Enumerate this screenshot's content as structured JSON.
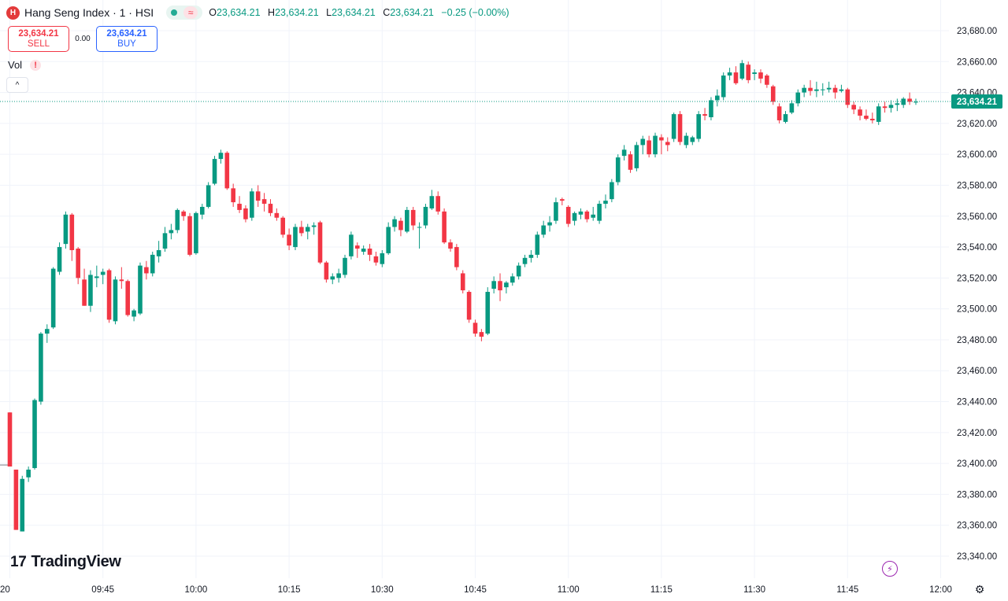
{
  "legend": {
    "logo": "H",
    "symbol": "Hang Seng Index · 1 · HSI",
    "open_key": "O",
    "open": "23,634.21",
    "high_key": "H",
    "high": "23,634.21",
    "low_key": "L",
    "low": "23,634.21",
    "close_key": "C",
    "close": "23,634.21",
    "change": "−0.25 (−0.00%)",
    "delay_glyph": "≈"
  },
  "trade": {
    "sell_price": "23,634.21",
    "sell_label": "SELL",
    "spread": "0.00",
    "buy_price": "23,634.21",
    "buy_label": "BUY"
  },
  "volume": {
    "label": "Vol",
    "warning": "!"
  },
  "collapse_glyph": "^",
  "brand": {
    "mark": "17",
    "name": "TradingView"
  },
  "colors": {
    "up": "#089981",
    "down": "#f23645",
    "last_price_bg": "#089981",
    "grid": "#f0f3fa"
  },
  "icons": [
    "chart-properties-icon",
    "lightning-icon",
    "gear-icon"
  ],
  "chart_data": {
    "type": "candlestick",
    "symbol": "HSI",
    "interval": "1 minute",
    "y_axis": {
      "ylim": [
        23330,
        23692
      ],
      "ticks": [
        "23,340.00",
        "23,360.00",
        "23,380.00",
        "23,400.00",
        "23,420.00",
        "23,440.00",
        "23,460.00",
        "23,480.00",
        "23,500.00",
        "23,520.00",
        "23,540.00",
        "23,560.00",
        "23,580.00",
        "23,600.00",
        "23,620.00",
        "23,640.00",
        "23,660.00",
        "23,680.00"
      ],
      "tick_values": [
        23340,
        23360,
        23380,
        23400,
        23420,
        23440,
        23460,
        23480,
        23500,
        23520,
        23540,
        23560,
        23580,
        23600,
        23620,
        23640,
        23660,
        23680
      ]
    },
    "x_axis": {
      "labels": [
        "20",
        "09:45",
        "10:00",
        "10:15",
        "10:30",
        "10:45",
        "11:00",
        "11:15",
        "11:30",
        "11:45",
        "12:00"
      ],
      "label_times": [
        "09:30",
        "09:45",
        "10:00",
        "10:15",
        "10:30",
        "10:45",
        "11:00",
        "11:15",
        "11:30",
        "11:45",
        "12:00"
      ]
    },
    "grid": true,
    "last_price": 23634.21,
    "last_price_label": "23,634.21",
    "reference_price": 23399,
    "candles": [
      {
        "t": "09:30",
        "o": 23433,
        "h": 23433,
        "l": 23398,
        "c": 23398
      },
      {
        "t": "09:31",
        "o": 23396,
        "h": 23396,
        "l": 23357,
        "c": 23357
      },
      {
        "t": "09:32",
        "o": 23356,
        "h": 23392,
        "l": 23356,
        "c": 23390
      },
      {
        "t": "09:33",
        "o": 23391,
        "h": 23398,
        "l": 23388,
        "c": 23396
      },
      {
        "t": "09:34",
        "o": 23397,
        "h": 23442,
        "l": 23396,
        "c": 23441
      },
      {
        "t": "09:35",
        "o": 23440,
        "h": 23485,
        "l": 23438,
        "c": 23484
      },
      {
        "t": "09:36",
        "o": 23484,
        "h": 23490,
        "l": 23478,
        "c": 23487
      },
      {
        "t": "09:37",
        "o": 23488,
        "h": 23527,
        "l": 23487,
        "c": 23526
      },
      {
        "t": "09:38",
        "o": 23524,
        "h": 23543,
        "l": 23522,
        "c": 23540
      },
      {
        "t": "09:39",
        "o": 23542,
        "h": 23563,
        "l": 23539,
        "c": 23561
      },
      {
        "t": "09:40",
        "o": 23561,
        "h": 23562,
        "l": 23531,
        "c": 23538
      },
      {
        "t": "09:41",
        "o": 23539,
        "h": 23540,
        "l": 23516,
        "c": 23520
      },
      {
        "t": "09:42",
        "o": 23519,
        "h": 23526,
        "l": 23502,
        "c": 23502
      },
      {
        "t": "09:43",
        "o": 23502,
        "h": 23525,
        "l": 23498,
        "c": 23522
      },
      {
        "t": "09:44",
        "o": 23520,
        "h": 23528,
        "l": 23514,
        "c": 23521
      },
      {
        "t": "09:45",
        "o": 23522,
        "h": 23526,
        "l": 23516,
        "c": 23524
      },
      {
        "t": "09:46",
        "o": 23525,
        "h": 23526,
        "l": 23491,
        "c": 23493
      },
      {
        "t": "09:47",
        "o": 23492,
        "h": 23521,
        "l": 23490,
        "c": 23519
      },
      {
        "t": "09:48",
        "o": 23519,
        "h": 23527,
        "l": 23513,
        "c": 23518
      },
      {
        "t": "09:49",
        "o": 23518,
        "h": 23519,
        "l": 23495,
        "c": 23496
      },
      {
        "t": "09:50",
        "o": 23495,
        "h": 23500,
        "l": 23492,
        "c": 23499
      },
      {
        "t": "09:51",
        "o": 23497,
        "h": 23530,
        "l": 23496,
        "c": 23528
      },
      {
        "t": "09:52",
        "o": 23527,
        "h": 23531,
        "l": 23519,
        "c": 23523
      },
      {
        "t": "09:53",
        "o": 23523,
        "h": 23537,
        "l": 23521,
        "c": 23535
      },
      {
        "t": "09:54",
        "o": 23534,
        "h": 23544,
        "l": 23530,
        "c": 23538
      },
      {
        "t": "09:55",
        "o": 23539,
        "h": 23553,
        "l": 23537,
        "c": 23549
      },
      {
        "t": "09:56",
        "o": 23549,
        "h": 23555,
        "l": 23545,
        "c": 23551
      },
      {
        "t": "09:57",
        "o": 23551,
        "h": 23565,
        "l": 23549,
        "c": 23564
      },
      {
        "t": "09:58",
        "o": 23563,
        "h": 23564,
        "l": 23557,
        "c": 23560
      },
      {
        "t": "09:59",
        "o": 23560,
        "h": 23562,
        "l": 23534,
        "c": 23535
      },
      {
        "t": "10:00",
        "o": 23536,
        "h": 23563,
        "l": 23535,
        "c": 23562
      },
      {
        "t": "10:01",
        "o": 23561,
        "h": 23568,
        "l": 23558,
        "c": 23566
      },
      {
        "t": "10:02",
        "o": 23566,
        "h": 23582,
        "l": 23565,
        "c": 23580
      },
      {
        "t": "10:03",
        "o": 23581,
        "h": 23599,
        "l": 23580,
        "c": 23597
      },
      {
        "t": "10:04",
        "o": 23597,
        "h": 23603,
        "l": 23594,
        "c": 23601
      },
      {
        "t": "10:05",
        "o": 23601,
        "h": 23602,
        "l": 23577,
        "c": 23578
      },
      {
        "t": "10:06",
        "o": 23578,
        "h": 23581,
        "l": 23566,
        "c": 23569
      },
      {
        "t": "10:07",
        "o": 23568,
        "h": 23573,
        "l": 23562,
        "c": 23564
      },
      {
        "t": "10:08",
        "o": 23565,
        "h": 23567,
        "l": 23556,
        "c": 23558
      },
      {
        "t": "10:09",
        "o": 23559,
        "h": 23578,
        "l": 23557,
        "c": 23576
      },
      {
        "t": "10:10",
        "o": 23576,
        "h": 23580,
        "l": 23566,
        "c": 23570
      },
      {
        "t": "10:11",
        "o": 23571,
        "h": 23575,
        "l": 23563,
        "c": 23568
      },
      {
        "t": "10:12",
        "o": 23568,
        "h": 23571,
        "l": 23560,
        "c": 23562
      },
      {
        "t": "10:13",
        "o": 23562,
        "h": 23565,
        "l": 23557,
        "c": 23559
      },
      {
        "t": "10:14",
        "o": 23559,
        "h": 23560,
        "l": 23546,
        "c": 23548
      },
      {
        "t": "10:15",
        "o": 23548,
        "h": 23552,
        "l": 23538,
        "c": 23541
      },
      {
        "t": "10:16",
        "o": 23540,
        "h": 23555,
        "l": 23538,
        "c": 23553
      },
      {
        "t": "10:17",
        "o": 23553,
        "h": 23557,
        "l": 23547,
        "c": 23549
      },
      {
        "t": "10:18",
        "o": 23550,
        "h": 23555,
        "l": 23545,
        "c": 23553
      },
      {
        "t": "10:19",
        "o": 23553,
        "h": 23556,
        "l": 23548,
        "c": 23554
      },
      {
        "t": "10:20",
        "o": 23556,
        "h": 23557,
        "l": 23529,
        "c": 23530
      },
      {
        "t": "10:21",
        "o": 23530,
        "h": 23531,
        "l": 23517,
        "c": 23519
      },
      {
        "t": "10:22",
        "o": 23519,
        "h": 23523,
        "l": 23516,
        "c": 23521
      },
      {
        "t": "10:23",
        "o": 23520,
        "h": 23526,
        "l": 23517,
        "c": 23523
      },
      {
        "t": "10:24",
        "o": 23522,
        "h": 23535,
        "l": 23520,
        "c": 23533
      },
      {
        "t": "10:25",
        "o": 23534,
        "h": 23550,
        "l": 23532,
        "c": 23548
      },
      {
        "t": "10:26",
        "o": 23541,
        "h": 23543,
        "l": 23533,
        "c": 23539
      },
      {
        "t": "10:27",
        "o": 23537,
        "h": 23541,
        "l": 23535,
        "c": 23539
      },
      {
        "t": "10:28",
        "o": 23539,
        "h": 23542,
        "l": 23531,
        "c": 23535
      },
      {
        "t": "10:29",
        "o": 23534,
        "h": 23537,
        "l": 23528,
        "c": 23530
      },
      {
        "t": "10:30",
        "o": 23529,
        "h": 23538,
        "l": 23527,
        "c": 23536
      },
      {
        "t": "10:31",
        "o": 23536,
        "h": 23556,
        "l": 23535,
        "c": 23553
      },
      {
        "t": "10:32",
        "o": 23553,
        "h": 23560,
        "l": 23550,
        "c": 23558
      },
      {
        "t": "10:33",
        "o": 23557,
        "h": 23559,
        "l": 23547,
        "c": 23551
      },
      {
        "t": "10:34",
        "o": 23550,
        "h": 23566,
        "l": 23549,
        "c": 23564
      },
      {
        "t": "10:35",
        "o": 23564,
        "h": 23566,
        "l": 23551,
        "c": 23554
      },
      {
        "t": "10:36",
        "o": 23553,
        "h": 23556,
        "l": 23539,
        "c": 23553
      },
      {
        "t": "10:37",
        "o": 23554,
        "h": 23568,
        "l": 23552,
        "c": 23566
      },
      {
        "t": "10:38",
        "o": 23565,
        "h": 23577,
        "l": 23564,
        "c": 23573
      },
      {
        "t": "10:39",
        "o": 23573,
        "h": 23576,
        "l": 23561,
        "c": 23563
      },
      {
        "t": "10:40",
        "o": 23563,
        "h": 23565,
        "l": 23542,
        "c": 23543
      },
      {
        "t": "10:41",
        "o": 23543,
        "h": 23545,
        "l": 23537,
        "c": 23539
      },
      {
        "t": "10:42",
        "o": 23540,
        "h": 23542,
        "l": 23525,
        "c": 23527
      },
      {
        "t": "10:43",
        "o": 23523,
        "h": 23525,
        "l": 23510,
        "c": 23512
      },
      {
        "t": "10:44",
        "o": 23511,
        "h": 23512,
        "l": 23491,
        "c": 23493
      },
      {
        "t": "10:45",
        "o": 23491,
        "h": 23493,
        "l": 23482,
        "c": 23484
      },
      {
        "t": "10:46",
        "o": 23485,
        "h": 23487,
        "l": 23479,
        "c": 23482
      },
      {
        "t": "10:47",
        "o": 23484,
        "h": 23514,
        "l": 23483,
        "c": 23511
      },
      {
        "t": "10:48",
        "o": 23513,
        "h": 23521,
        "l": 23510,
        "c": 23518
      },
      {
        "t": "10:49",
        "o": 23518,
        "h": 23523,
        "l": 23505,
        "c": 23512
      },
      {
        "t": "10:50",
        "o": 23514,
        "h": 23518,
        "l": 23510,
        "c": 23517
      },
      {
        "t": "10:51",
        "o": 23517,
        "h": 23523,
        "l": 23515,
        "c": 23521
      },
      {
        "t": "10:52",
        "o": 23521,
        "h": 23530,
        "l": 23519,
        "c": 23528
      },
      {
        "t": "10:53",
        "o": 23529,
        "h": 23535,
        "l": 23527,
        "c": 23533
      },
      {
        "t": "10:54",
        "o": 23533,
        "h": 23538,
        "l": 23530,
        "c": 23535
      },
      {
        "t": "10:55",
        "o": 23535,
        "h": 23550,
        "l": 23533,
        "c": 23548
      },
      {
        "t": "10:56",
        "o": 23548,
        "h": 23557,
        "l": 23546,
        "c": 23554
      },
      {
        "t": "10:57",
        "o": 23554,
        "h": 23560,
        "l": 23550,
        "c": 23556
      },
      {
        "t": "10:58",
        "o": 23557,
        "h": 23572,
        "l": 23555,
        "c": 23569
      },
      {
        "t": "10:59",
        "o": 23571,
        "h": 23572,
        "l": 23567,
        "c": 23570
      },
      {
        "t": "11:00",
        "o": 23566,
        "h": 23567,
        "l": 23553,
        "c": 23555
      },
      {
        "t": "11:01",
        "o": 23557,
        "h": 23563,
        "l": 23554,
        "c": 23562
      },
      {
        "t": "11:02",
        "o": 23561,
        "h": 23565,
        "l": 23558,
        "c": 23563
      },
      {
        "t": "11:03",
        "o": 23563,
        "h": 23564,
        "l": 23556,
        "c": 23558
      },
      {
        "t": "11:04",
        "o": 23559,
        "h": 23566,
        "l": 23557,
        "c": 23561
      },
      {
        "t": "11:05",
        "o": 23557,
        "h": 23570,
        "l": 23555,
        "c": 23568
      },
      {
        "t": "11:06",
        "o": 23568,
        "h": 23574,
        "l": 23565,
        "c": 23570
      },
      {
        "t": "11:07",
        "o": 23571,
        "h": 23584,
        "l": 23569,
        "c": 23582
      },
      {
        "t": "11:08",
        "o": 23582,
        "h": 23600,
        "l": 23580,
        "c": 23598
      },
      {
        "t": "11:09",
        "o": 23599,
        "h": 23606,
        "l": 23596,
        "c": 23603
      },
      {
        "t": "11:10",
        "o": 23600,
        "h": 23602,
        "l": 23588,
        "c": 23590
      },
      {
        "t": "11:11",
        "o": 23591,
        "h": 23608,
        "l": 23589,
        "c": 23606
      },
      {
        "t": "11:12",
        "o": 23606,
        "h": 23612,
        "l": 23600,
        "c": 23610
      },
      {
        "t": "11:13",
        "o": 23609,
        "h": 23612,
        "l": 23598,
        "c": 23600
      },
      {
        "t": "11:14",
        "o": 23600,
        "h": 23614,
        "l": 23598,
        "c": 23612
      },
      {
        "t": "11:15",
        "o": 23611,
        "h": 23613,
        "l": 23600,
        "c": 23609
      },
      {
        "t": "11:16",
        "o": 23608,
        "h": 23611,
        "l": 23602,
        "c": 23606
      },
      {
        "t": "11:17",
        "o": 23610,
        "h": 23627,
        "l": 23608,
        "c": 23626
      },
      {
        "t": "11:18",
        "o": 23626,
        "h": 23628,
        "l": 23606,
        "c": 23608
      },
      {
        "t": "11:19",
        "o": 23606,
        "h": 23614,
        "l": 23604,
        "c": 23612
      },
      {
        "t": "11:20",
        "o": 23608,
        "h": 23612,
        "l": 23606,
        "c": 23611
      },
      {
        "t": "11:21",
        "o": 23610,
        "h": 23628,
        "l": 23608,
        "c": 23626
      },
      {
        "t": "11:22",
        "o": 23626,
        "h": 23630,
        "l": 23622,
        "c": 23625
      },
      {
        "t": "11:23",
        "o": 23624,
        "h": 23637,
        "l": 23622,
        "c": 23635
      },
      {
        "t": "11:24",
        "o": 23635,
        "h": 23642,
        "l": 23631,
        "c": 23638
      },
      {
        "t": "11:25",
        "o": 23637,
        "h": 23653,
        "l": 23635,
        "c": 23651
      },
      {
        "t": "11:26",
        "o": 23651,
        "h": 23656,
        "l": 23648,
        "c": 23653
      },
      {
        "t": "11:27",
        "o": 23653,
        "h": 23657,
        "l": 23645,
        "c": 23646
      },
      {
        "t": "11:28",
        "o": 23649,
        "h": 23661,
        "l": 23648,
        "c": 23659
      },
      {
        "t": "11:29",
        "o": 23658,
        "h": 23660,
        "l": 23646,
        "c": 23648
      },
      {
        "t": "11:30",
        "o": 23652,
        "h": 23655,
        "l": 23648,
        "c": 23653
      },
      {
        "t": "11:31",
        "o": 23653,
        "h": 23655,
        "l": 23646,
        "c": 23649
      },
      {
        "t": "11:32",
        "o": 23651,
        "h": 23652,
        "l": 23643,
        "c": 23645
      },
      {
        "t": "11:33",
        "o": 23644,
        "h": 23645,
        "l": 23632,
        "c": 23634
      },
      {
        "t": "11:34",
        "o": 23631,
        "h": 23633,
        "l": 23620,
        "c": 23622
      },
      {
        "t": "11:35",
        "o": 23621,
        "h": 23628,
        "l": 23620,
        "c": 23626
      },
      {
        "t": "11:36",
        "o": 23627,
        "h": 23635,
        "l": 23626,
        "c": 23633
      },
      {
        "t": "11:37",
        "o": 23633,
        "h": 23642,
        "l": 23631,
        "c": 23640
      },
      {
        "t": "11:38",
        "o": 23640,
        "h": 23645,
        "l": 23637,
        "c": 23643
      },
      {
        "t": "11:39",
        "o": 23643,
        "h": 23648,
        "l": 23638,
        "c": 23641
      },
      {
        "t": "11:40",
        "o": 23641,
        "h": 23647,
        "l": 23637,
        "c": 23642
      },
      {
        "t": "11:41",
        "o": 23642,
        "h": 23646,
        "l": 23638,
        "c": 23642
      },
      {
        "t": "11:42",
        "o": 23642,
        "h": 23647,
        "l": 23640,
        "c": 23643
      },
      {
        "t": "11:43",
        "o": 23643,
        "h": 23645,
        "l": 23636,
        "c": 23640
      },
      {
        "t": "11:44",
        "o": 23641,
        "h": 23645,
        "l": 23640,
        "c": 23642
      },
      {
        "t": "11:45",
        "o": 23642,
        "h": 23643,
        "l": 23630,
        "c": 23632
      },
      {
        "t": "11:46",
        "o": 23632,
        "h": 23634,
        "l": 23626,
        "c": 23629
      },
      {
        "t": "11:47",
        "o": 23629,
        "h": 23631,
        "l": 23622,
        "c": 23625
      },
      {
        "t": "11:48",
        "o": 23625,
        "h": 23629,
        "l": 23622,
        "c": 23623
      },
      {
        "t": "11:49",
        "o": 23623,
        "h": 23627,
        "l": 23620,
        "c": 23622
      },
      {
        "t": "11:50",
        "o": 23621,
        "h": 23633,
        "l": 23619,
        "c": 23631
      },
      {
        "t": "11:51",
        "o": 23631,
        "h": 23634,
        "l": 23627,
        "c": 23630
      },
      {
        "t": "11:52",
        "o": 23630,
        "h": 23635,
        "l": 23627,
        "c": 23632
      },
      {
        "t": "11:53",
        "o": 23632,
        "h": 23636,
        "l": 23628,
        "c": 23633
      },
      {
        "t": "11:54",
        "o": 23632,
        "h": 23637,
        "l": 23630,
        "c": 23636
      },
      {
        "t": "11:55",
        "o": 23636,
        "h": 23640,
        "l": 23632,
        "c": 23634
      },
      {
        "t": "11:56",
        "o": 23634,
        "h": 23636,
        "l": 23632,
        "c": 23634
      }
    ]
  }
}
